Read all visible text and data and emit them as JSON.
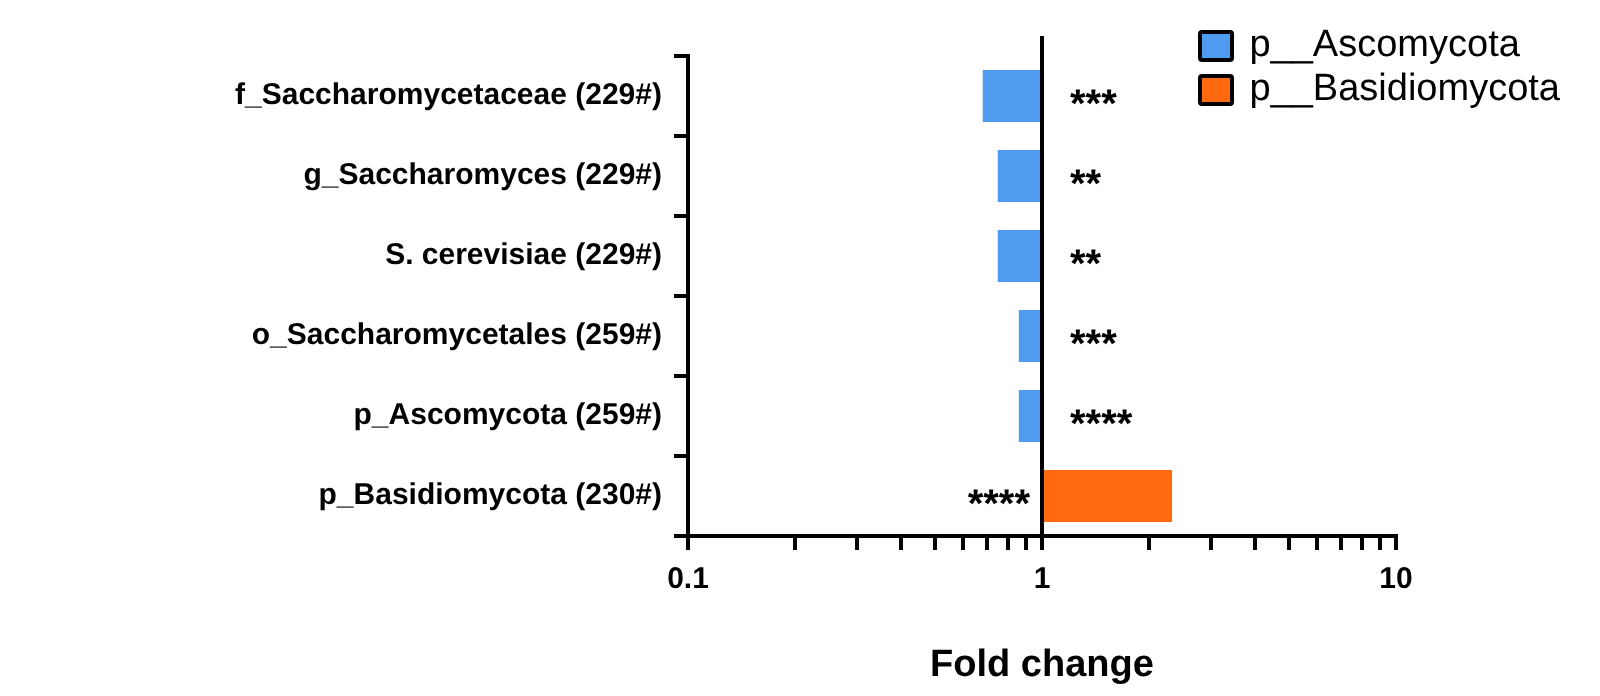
{
  "chart_data": {
    "type": "bar",
    "orientation": "horizontal",
    "log": "x",
    "xlabel": "Fold change",
    "categories": [
      "f_Saccharomycetaceae (229#)",
      "g_Saccharomyces (229#)",
      "S. cerevisiae (229#)",
      "o_Saccharomycetales (259#)",
      "p_Ascomycota (259#)",
      "p_Basidiomycota (230#)"
    ],
    "series": [
      {
        "name": "p__Ascomycota",
        "color": "#4f9bf0",
        "base": [
          1,
          1,
          1,
          1,
          1,
          null
        ],
        "values": [
          -0.32,
          -0.25,
          -0.25,
          -0.14,
          -0.14,
          null
        ],
        "value_labels": [
          "***",
          "**",
          "**",
          "***",
          "****",
          null
        ]
      },
      {
        "name": "p__Basidiomycota",
        "color": "#ff6a10",
        "base": [
          null,
          null,
          null,
          null,
          null,
          1
        ],
        "values": [
          null,
          null,
          null,
          null,
          null,
          1.33
        ],
        "value_labels": [
          null,
          null,
          null,
          null,
          null,
          "****"
        ]
      }
    ],
    "xlim": [
      0.1,
      10
    ],
    "xticks": [
      0.1,
      {
        "value": 0.2,
        "label": null
      },
      {
        "value": 0.3,
        "label": null
      },
      {
        "value": 0.4,
        "label": null
      },
      {
        "value": 0.5,
        "label": null
      },
      {
        "value": 0.6,
        "label": null
      },
      {
        "value": 0.7,
        "label": null
      },
      {
        "value": 0.8,
        "label": null
      },
      {
        "value": 0.9,
        "label": null
      },
      1,
      {
        "value": 2,
        "label": null
      },
      {
        "value": 3,
        "label": null
      },
      {
        "value": 4,
        "label": null
      },
      {
        "value": 5,
        "label": null
      },
      {
        "value": 6,
        "label": null
      },
      {
        "value": 7,
        "label": null
      },
      {
        "value": 8,
        "label": null
      },
      {
        "value": 9,
        "label": null
      },
      10
    ],
    "ref_lines": [
      {
        "axis": "x",
        "value": 1,
        "color": "#000000"
      }
    ],
    "grid": false,
    "legend": "top right"
  }
}
